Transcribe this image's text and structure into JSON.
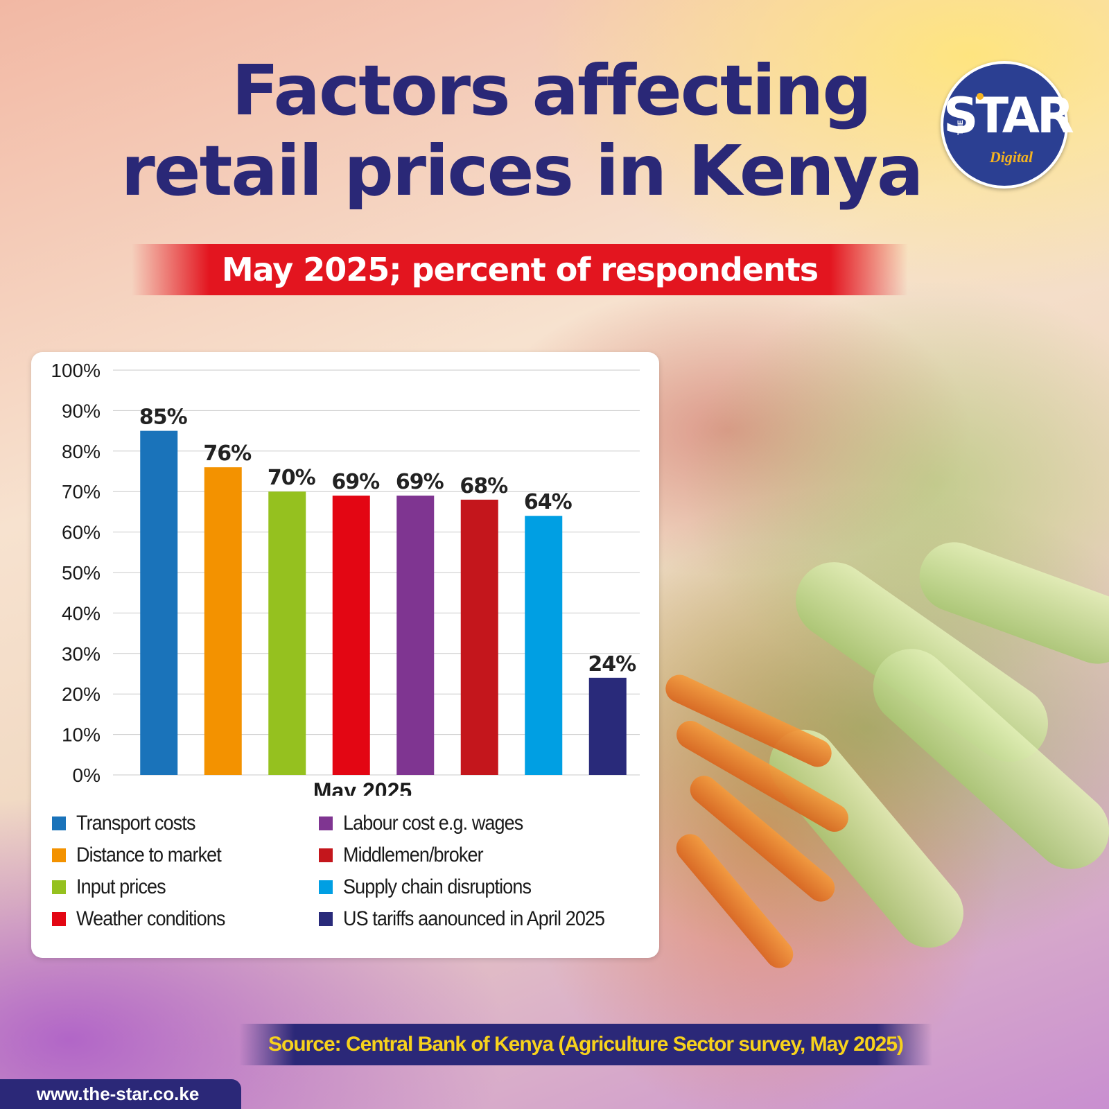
{
  "title_line1": "Factors affecting",
  "title_line2": "retail prices in Kenya",
  "subtitle": "May 2025; percent of respondents",
  "logo": {
    "top": "THE",
    "main": "STAR",
    "sub": "Digital"
  },
  "source": "Source: Central Bank of Kenya (Agriculture Sector survey, May 2025)",
  "website": "www.the-star.co.ke",
  "colors": {
    "title": "#2a2877",
    "subtitle_band": "#e3151f",
    "source_band": "#2b2878",
    "source_text": "#f7d21c"
  },
  "chart_data": {
    "type": "bar",
    "xlabel": "May 2025",
    "ylabel": "",
    "ylim": [
      0,
      100
    ],
    "yticks": [
      "0%",
      "10%",
      "20%",
      "30%",
      "40%",
      "50%",
      "60%",
      "70%",
      "80%",
      "90%",
      "100%"
    ],
    "grid": true,
    "legend_position": "bottom",
    "series": [
      {
        "name": "Transport costs",
        "value": 85,
        "label": "85%",
        "color": "#1a73ba"
      },
      {
        "name": "Distance to market",
        "value": 76,
        "label": "76%",
        "color": "#f39200"
      },
      {
        "name": "Input prices",
        "value": 70,
        "label": "70%",
        "color": "#95c11f"
      },
      {
        "name": "Weather conditions",
        "value": 69,
        "label": "69%",
        "color": "#e30613"
      },
      {
        "name": "Labour cost e.g. wages",
        "value": 69,
        "label": "69%",
        "color": "#7f3591"
      },
      {
        "name": "Middlemen/broker",
        "value": 68,
        "label": "68%",
        "color": "#c4161c"
      },
      {
        "name": "Supply chain disruptions",
        "value": 64,
        "label": "64%",
        "color": "#009fe3"
      },
      {
        "name": "US tariffs aanounced in April 2025",
        "value": 24,
        "label": "24%",
        "color": "#292a7a"
      }
    ]
  }
}
